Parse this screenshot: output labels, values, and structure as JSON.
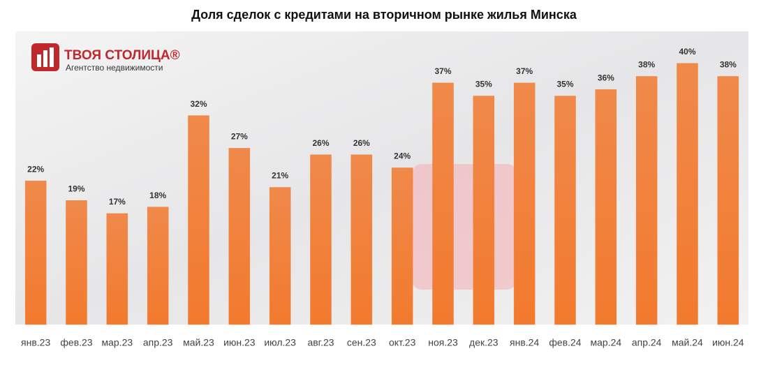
{
  "chart_data": {
    "type": "bar",
    "title": "Доля сделок с кредитами на вторичном рынке жилья Минска",
    "brand": {
      "name": "ТВОЯ СТОЛИЦА®",
      "tagline": "Агентство недвижимости"
    },
    "categories": [
      "янв.23",
      "фев.23",
      "мар.23",
      "апр.23",
      "май.23",
      "июн.23",
      "июл.23",
      "авг.23",
      "сен.23",
      "окт.23",
      "ноя.23",
      "дек.23",
      "янв.24",
      "фев.24",
      "мар.24",
      "апр.24",
      "май.24",
      "июн.24"
    ],
    "values": [
      22,
      19,
      17,
      18,
      32,
      27,
      21,
      26,
      26,
      24,
      37,
      35,
      37,
      35,
      36,
      38,
      40,
      38
    ],
    "value_labels": [
      "22%",
      "19%",
      "17%",
      "18%",
      "32%",
      "27%",
      "21%",
      "26%",
      "26%",
      "24%",
      "37%",
      "35%",
      "37%",
      "35%",
      "36%",
      "38%",
      "40%",
      "38%"
    ],
    "color": "#f0823f",
    "ylim": [
      0,
      45
    ]
  }
}
